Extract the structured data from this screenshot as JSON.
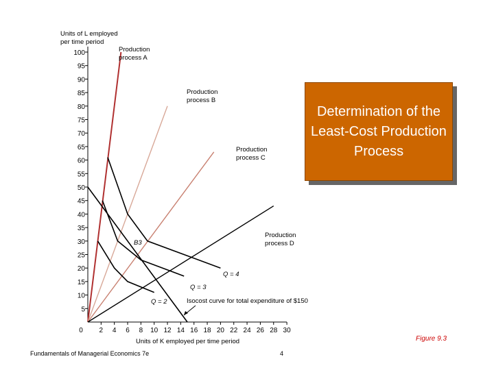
{
  "slide_title": "Determination of the Least-Cost Production Process",
  "footer_text": "Fundamentals of Managerial Economics 7e",
  "page_number": "4",
  "figure_label": "Figure 9.3",
  "chart_data": {
    "type": "line",
    "ylabel_line1": "Units of L employed",
    "ylabel_line2": "per time period",
    "xlabel": "Units of K employed per time period",
    "xlim": [
      0,
      30
    ],
    "ylim": [
      0,
      100
    ],
    "x_ticks": [
      0,
      2,
      4,
      6,
      8,
      10,
      12,
      14,
      16,
      18,
      20,
      22,
      24,
      26,
      28,
      30
    ],
    "y_ticks": [
      5,
      10,
      15,
      20,
      25,
      30,
      35,
      40,
      45,
      50,
      55,
      60,
      65,
      70,
      75,
      80,
      85,
      90,
      95,
      100
    ],
    "processes": [
      {
        "id": "A",
        "label_line1": "Production",
        "label_line2": "process A",
        "color": "#b03030",
        "end": [
          5,
          100
        ]
      },
      {
        "id": "B",
        "label_line1": "Production",
        "label_line2": "process B",
        "color": "#d8a898",
        "end": [
          12,
          80
        ]
      },
      {
        "id": "C",
        "label_line1": "Production",
        "label_line2": "process C",
        "color": "#c88070",
        "end": [
          19,
          63
        ]
      },
      {
        "id": "D",
        "label_line1": "Production",
        "label_line2": "process D",
        "color": "#000000",
        "end": [
          28,
          43
        ]
      }
    ],
    "isoquants": [
      {
        "label": "Q = 2",
        "points": [
          [
            1.5,
            30
          ],
          [
            4,
            20
          ],
          [
            6,
            15
          ],
          [
            10,
            11
          ]
        ]
      },
      {
        "label": "Q = 3",
        "points": [
          [
            2.2,
            45
          ],
          [
            4.5,
            30
          ],
          [
            8,
            23
          ],
          [
            14.5,
            17
          ]
        ]
      },
      {
        "label": "Q = 4",
        "points": [
          [
            3,
            61
          ],
          [
            6,
            40
          ],
          [
            9,
            30
          ],
          [
            20,
            20
          ]
        ]
      }
    ],
    "isocost": {
      "label": "Isocost curve for total expenditure of $150",
      "points": [
        [
          0,
          50
        ],
        [
          15,
          0
        ]
      ]
    },
    "annotations": [
      {
        "text": "B3",
        "x": 4.6,
        "y": 29
      }
    ]
  }
}
